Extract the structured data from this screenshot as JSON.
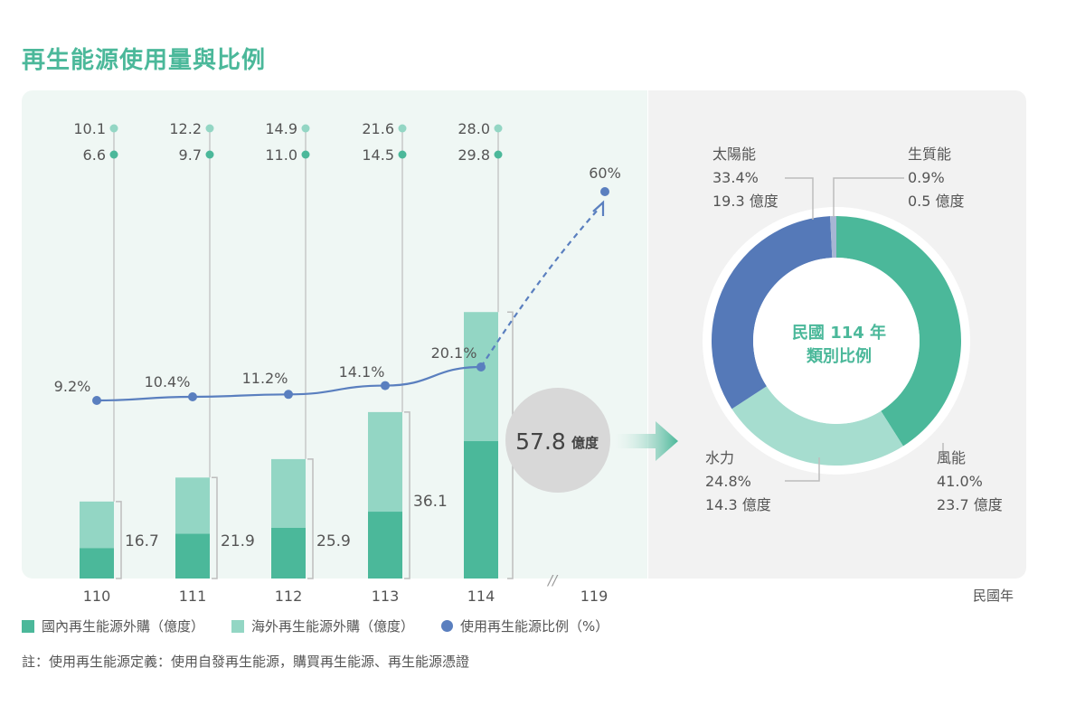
{
  "title": "再生能源使用量與比例",
  "x_unit": "民國年",
  "note": "註：使用再生能源定義：使用自發再生能源，購買再生能源、再生能源憑證",
  "colors": {
    "domestic": "#4bb89a",
    "overseas": "#93d6c4",
    "ratio": "#5a7fbf",
    "title": "#4bb89a",
    "solar": "#5579b8",
    "biomass": "#a7b6d4",
    "hydro": "#a6ddcf",
    "wind": "#4bb89a"
  },
  "legend": [
    {
      "label": "國內再生能源外購（億度）",
      "shape": "square",
      "color": "#4bb89a"
    },
    {
      "label": "海外再生能源外購（億度）",
      "shape": "square",
      "color": "#93d6c4"
    },
    {
      "label": "使用再生能源比例（%）",
      "shape": "circle",
      "color": "#5a7fbf"
    }
  ],
  "chart_data": [
    {
      "type": "bar",
      "stacked": true,
      "categories": [
        "110",
        "111",
        "112",
        "113",
        "114"
      ],
      "series": [
        {
          "name": "國內再生能源外購（億度）",
          "values": [
            6.6,
            9.7,
            11.0,
            14.5,
            29.8
          ]
        },
        {
          "name": "海外再生能源外購（億度）",
          "values": [
            10.1,
            12.2,
            14.9,
            21.6,
            28.0
          ]
        }
      ],
      "totals": [
        16.7,
        21.9,
        25.9,
        36.1,
        57.8
      ],
      "total_labels": [
        "16.7",
        "21.9",
        "25.9",
        "36.1",
        "57.8"
      ],
      "total_unit": "億度",
      "domestic_labels": [
        "6.6",
        "9.7",
        "11.0",
        "14.5",
        "29.8"
      ],
      "overseas_labels": [
        "10.1",
        "12.2",
        "14.9",
        "21.6",
        "28.0"
      ],
      "x_tick_labels": [
        "110",
        "111",
        "112",
        "113",
        "114",
        "119"
      ],
      "axis_break": "//",
      "ylim": [
        0,
        60
      ]
    },
    {
      "type": "line",
      "name": "使用再生能源比例（%）",
      "x": [
        "110",
        "111",
        "112",
        "113",
        "114"
      ],
      "values": [
        9.2,
        10.4,
        11.2,
        14.1,
        20.1
      ],
      "labels": [
        "9.2%",
        "10.4%",
        "11.2%",
        "14.1%",
        "20.1%"
      ],
      "target": {
        "x": "119",
        "value": 60,
        "label": "60%",
        "style": "dashed-arrow"
      },
      "ylim": [
        0,
        60
      ]
    },
    {
      "type": "pie",
      "donut": true,
      "center_label": [
        "民國 114 年",
        "類別比例"
      ],
      "slices": [
        {
          "name": "風能",
          "percent": 41.0,
          "percent_label": "41.0%",
          "value_label": "23.7 億度",
          "color": "#4bb89a"
        },
        {
          "name": "水力",
          "percent": 24.8,
          "percent_label": "24.8%",
          "value_label": "14.3 億度",
          "color": "#a6ddcf"
        },
        {
          "name": "太陽能",
          "percent": 33.4,
          "percent_label": "33.4%",
          "value_label": "19.3 億度",
          "color": "#5579b8"
        },
        {
          "name": "生質能",
          "percent": 0.9,
          "percent_label": "0.9%",
          "value_label": "0.5 億度",
          "color": "#a7b6d4"
        }
      ]
    }
  ]
}
